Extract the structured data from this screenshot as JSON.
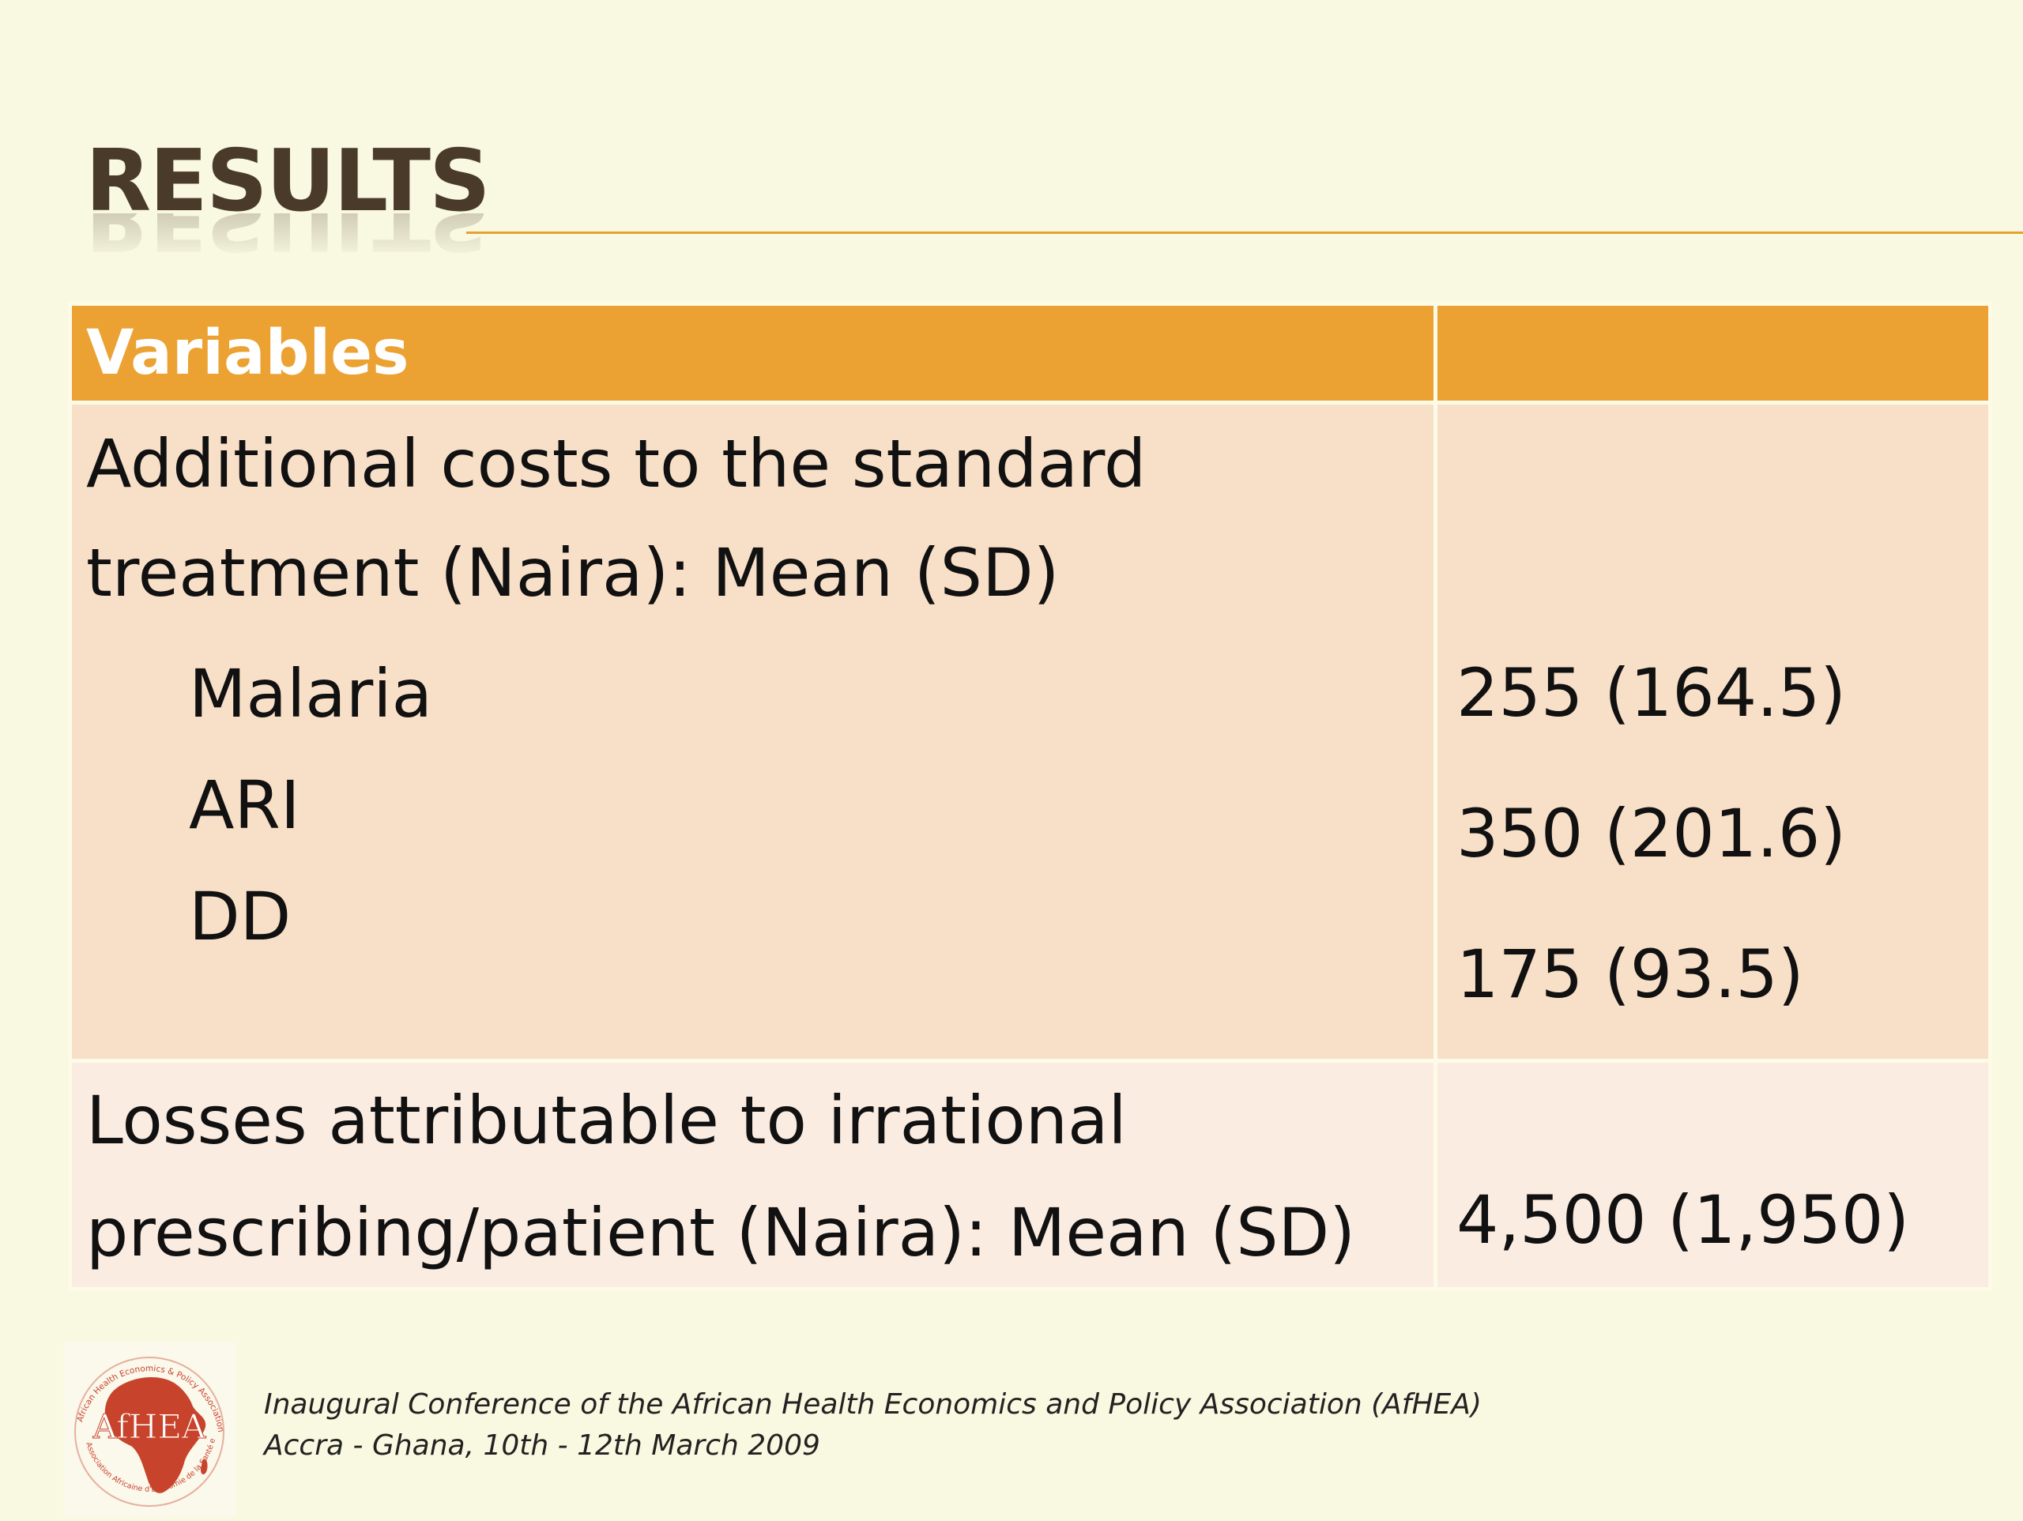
{
  "slide": {
    "title": "RESULTS",
    "table": {
      "header": {
        "variables": "Variables",
        "value": ""
      },
      "row1": {
        "line1": "Additional costs to the standard",
        "line2": "treatment (Naira): Mean (SD)",
        "items": [
          {
            "label": "Malaria",
            "value": "255 (164.5)"
          },
          {
            "label": "ARI",
            "value": "350 (201.6)"
          },
          {
            "label": "DD",
            "value": "175 (93.5)"
          }
        ]
      },
      "row2": {
        "line1": "Losses attributable to irrational",
        "line2": "prescribing/patient (Naira): Mean (SD)",
        "value": "4,500 (1,950)"
      }
    },
    "logo": {
      "text": "AfHEA",
      "ring_text": "African Health Economics & Policy Association",
      "ring_text_fr": "Association Africaine d'Economie de la Santé et de Politique de Santé"
    },
    "footer": {
      "line1": "Inaugural Conference of the African Health Economics and Policy Association (AfHEA)",
      "line2": "Accra - Ghana, 10th - 12th March 2009"
    },
    "colors": {
      "background": "#f9f8e0",
      "accent": "#eba232",
      "row_dark": "#f8dfc8",
      "row_light": "#fbece2",
      "logo_red": "#c8432b"
    }
  }
}
